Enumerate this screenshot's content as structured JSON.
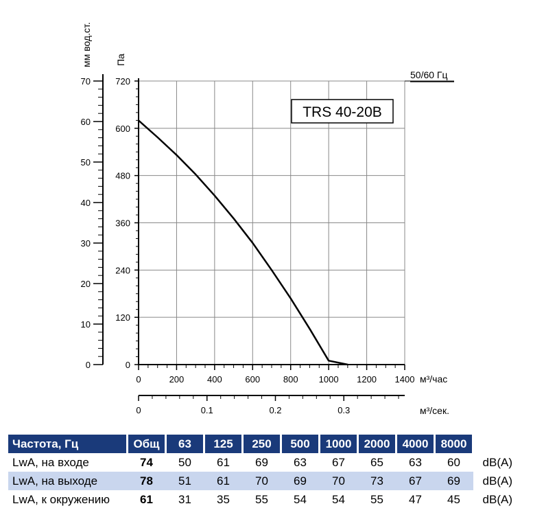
{
  "chart_data": {
    "type": "line",
    "title": "TRS 40-20B",
    "frequency_label": "50/60 Гц",
    "xlabel": "м³/час",
    "x2label": "м³/сек.",
    "ylabel": "Па",
    "y2label": "мм вод.ст.",
    "xlim": [
      0,
      1400
    ],
    "ylim": [
      0,
      720
    ],
    "y2lim": [
      0,
      70
    ],
    "x2lim": [
      0,
      0.389
    ],
    "x_ticks": [
      "0",
      "200",
      "400",
      "600",
      "800",
      "1000",
      "1200",
      "1400"
    ],
    "y_ticks": [
      "0",
      "120",
      "240",
      "360",
      "480",
      "600",
      "720"
    ],
    "y2_ticks": [
      "0",
      "10",
      "20",
      "30",
      "40",
      "50",
      "60",
      "70"
    ],
    "x2_ticks": [
      {
        "v": 0,
        "label": "0"
      },
      {
        "v": 0.1,
        "label": "0.1"
      },
      {
        "v": 0.2,
        "label": "0.2"
      },
      {
        "v": 0.3,
        "label": "0.3"
      }
    ],
    "grid": true,
    "series": [
      {
        "name": "",
        "x": [
          0,
          100,
          200,
          300,
          400,
          500,
          600,
          700,
          800,
          900,
          1000,
          1100,
          1120
        ],
        "y": [
          620,
          577,
          532,
          483,
          429,
          371,
          309,
          240,
          168,
          91,
          10,
          0,
          0
        ]
      }
    ]
  },
  "noise_table": {
    "header": [
      "Частота, Гц",
      "Общ",
      "63",
      "125",
      "250",
      "500",
      "1000",
      "2000",
      "4000",
      "8000"
    ],
    "rows": [
      {
        "label": "LwA, на входе",
        "total": "74",
        "values": [
          "50",
          "61",
          "69",
          "63",
          "67",
          "65",
          "63",
          "60"
        ],
        "unit": "dB(A)"
      },
      {
        "label": "LwA, на выходе",
        "total": "78",
        "values": [
          "51",
          "61",
          "70",
          "69",
          "70",
          "73",
          "67",
          "69"
        ],
        "unit": "dB(A)"
      },
      {
        "label": "LwA, к окружению",
        "total": "61",
        "values": [
          "31",
          "35",
          "55",
          "54",
          "54",
          "55",
          "47",
          "45"
        ],
        "unit": "dB(A)"
      }
    ]
  }
}
